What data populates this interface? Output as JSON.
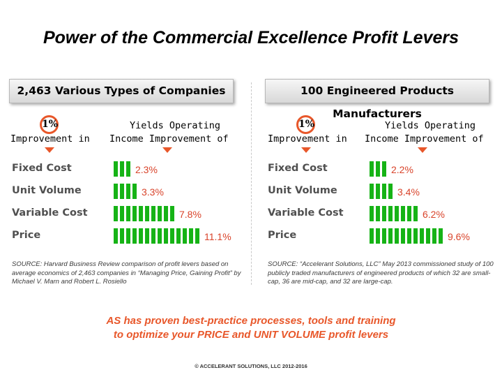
{
  "title": "Power of the Commercial Excellence Profit Levers",
  "left_label": "Improvement in",
  "right_label": "Yields Operating",
  "right_label2": "Income Improvement of",
  "pct": "1%",
  "chart_data": [
    {
      "type": "bar",
      "title": "2,463 Various Types of Companies",
      "categories": [
        "Fixed Cost",
        "Unit Volume",
        "Variable Cost",
        "Price"
      ],
      "values": [
        2.3,
        3.3,
        7.8,
        11.1
      ],
      "value_labels": [
        "2.3%",
        "3.3%",
        "7.8%",
        "11.1%"
      ],
      "source": "SOURCE: Harvard Business Review comparison of profit levers based on average economics of 2,463 companies in “Managing Price, Gaining Profit” by Michael V. Marn and Robert L. Rosiello"
    },
    {
      "type": "bar",
      "title": "100 Engineered Products Manufacturers",
      "categories": [
        "Fixed Cost",
        "Unit Volume",
        "Variable Cost",
        "Price"
      ],
      "values": [
        2.2,
        3.4,
        6.2,
        9.6
      ],
      "value_labels": [
        "2.2%",
        "3.4%",
        "6.2%",
        "9.6%"
      ],
      "source": "SOURCE: “Accelerant Solutions, LLC” May 2013 commissioned study of 100 publicly traded manufacturers of engineered products of which 32 are small-cap, 36 are mid-cap, and 32 are large-cap."
    }
  ],
  "tagline_line1": "AS has proven best-practice processes, tools and training",
  "tagline_line2": "to optimize your PRICE and UNIT VOLUME profit levers",
  "copyright": "© ACCELERANT SOLUTIONS, LLC  2012-2016",
  "colors": {
    "bar": "#16b316",
    "accent": "#e8572a",
    "value": "#d9442b"
  }
}
